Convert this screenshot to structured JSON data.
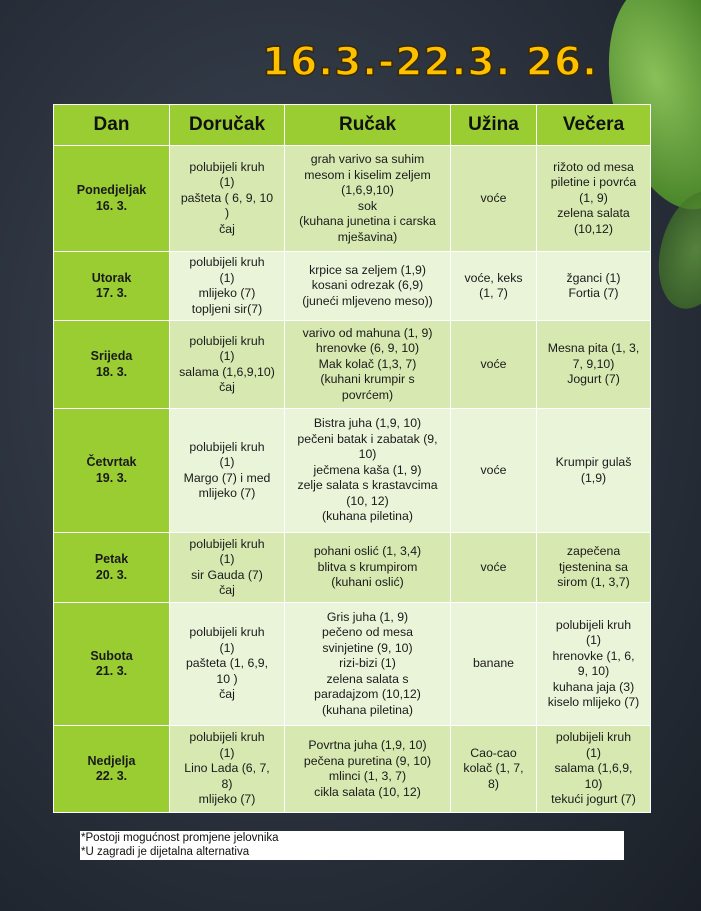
{
  "title": "16.3.-22.3. 26.",
  "colors": {
    "header_green": "#9acd32",
    "row_dark": "#d7e8b1",
    "row_light": "#eaf4d9",
    "title_yellow": "#ffc000"
  },
  "headers": [
    "Dan",
    "Doručak",
    "Ručak",
    "Užina",
    "Večera"
  ],
  "rows": [
    {
      "day": [
        "Ponedjeljak",
        "16. 3."
      ],
      "dorucak": [
        "polubijeli kruh",
        "(1)",
        "pašteta ( 6, 9, 10",
        ")",
        "čaj"
      ],
      "rucak": [
        "grah varivo sa suhim",
        "mesom i kiselim zeljem",
        "(1,6,9,10)",
        "sok",
        "(kuhana junetina i carska",
        "mješavina)"
      ],
      "uzina": [
        "voće"
      ],
      "vecera": [
        "rižoto od mesa",
        "piletine i povrća",
        "(1, 9)",
        "zelena salata",
        "(10,12)"
      ]
    },
    {
      "day": [
        "Utorak",
        "17. 3."
      ],
      "dorucak": [
        "polubijeli kruh",
        "(1)",
        "mlijeko (7)",
        "topljeni sir(7)"
      ],
      "rucak": [
        "krpice sa zeljem (1,9)",
        "kosani odrezak (6,9)",
        "(juneći mljeveno meso))"
      ],
      "uzina": [
        "voće, keks",
        "(1, 7)"
      ],
      "vecera": [
        "žganci (1)",
        "Fortia (7)"
      ]
    },
    {
      "day": [
        "Srijeda",
        "18. 3."
      ],
      "dorucak": [
        "polubijeli kruh",
        "(1)",
        "salama (1,6,9,10)",
        "čaj"
      ],
      "rucak": [
        "varivo od mahuna (1, 9)",
        "hrenovke (6, 9, 10)",
        "Mak kolač (1,3, 7)",
        "(kuhani krumpir s",
        "povrćem)"
      ],
      "uzina": [
        "voće"
      ],
      "vecera": [
        "Mesna pita (1, 3,",
        "7, 9,10)",
        "Jogurt (7)"
      ]
    },
    {
      "day": [
        "Četvrtak",
        "19. 3."
      ],
      "dorucak": [
        "polubijeli kruh",
        "(1)",
        "Margo (7) i med",
        "mlijeko (7)"
      ],
      "rucak": [
        "Bistra juha (1,9, 10)",
        "pečeni batak i zabatak (9,",
        "10)",
        "ječmena kaša (1, 9)",
        "zelje salata s krastavcima",
        "(10, 12)",
        "(kuhana piletina)"
      ],
      "uzina": [
        "voće"
      ],
      "vecera": [
        "Krumpir gulaš",
        "(1,9)"
      ]
    },
    {
      "day": [
        "Petak",
        "20. 3."
      ],
      "dorucak": [
        "polubijeli kruh",
        "(1)",
        "sir Gauda (7)",
        "čaj"
      ],
      "rucak": [
        "pohani oslić (1, 3,4)",
        "blitva s krumpirom",
        "(kuhani oslić)"
      ],
      "uzina": [
        "voće"
      ],
      "vecera": [
        "zapečena",
        "tjestenina sa",
        "sirom (1, 3,7)"
      ]
    },
    {
      "day": [
        "Subota",
        "21. 3."
      ],
      "dorucak": [
        "polubijeli kruh",
        "(1)",
        "pašteta (1, 6,9,",
        "10 )",
        "čaj"
      ],
      "rucak": [
        "Gris juha (1, 9)",
        "pečeno od mesa",
        "svinjetine (9, 10)",
        "rizi-bizi (1)",
        "zelena salata s",
        "paradajzom (10,12)",
        "(kuhana piletina)"
      ],
      "uzina": [
        "banane"
      ],
      "vecera": [
        "polubijeli kruh",
        "(1)",
        "hrenovke (1, 6,",
        "9, 10)",
        "kuhana jaja (3)",
        "kiselo mlijeko (7)"
      ]
    },
    {
      "day": [
        "Nedjelja",
        "22. 3."
      ],
      "dorucak": [
        "polubijeli kruh",
        "(1)",
        "Lino Lada (6, 7,",
        "8)",
        "mlijeko (7)"
      ],
      "rucak": [
        "Povrtna juha (1,9, 10)",
        "pečena puretina (9, 10)",
        "mlinci (1, 3, 7)",
        "cikla salata (10, 12)"
      ],
      "uzina": [
        "Cao-cao",
        "kolač (1, 7,",
        "8)"
      ],
      "vecera": [
        "polubijeli kruh",
        "(1)",
        "salama (1,6,9,",
        "10)",
        "tekući jogurt (7)"
      ]
    }
  ],
  "notes": [
    "*Postoji mogućnost promjene jelovnika",
    "*U zagradi je dijetalna alternativa"
  ]
}
